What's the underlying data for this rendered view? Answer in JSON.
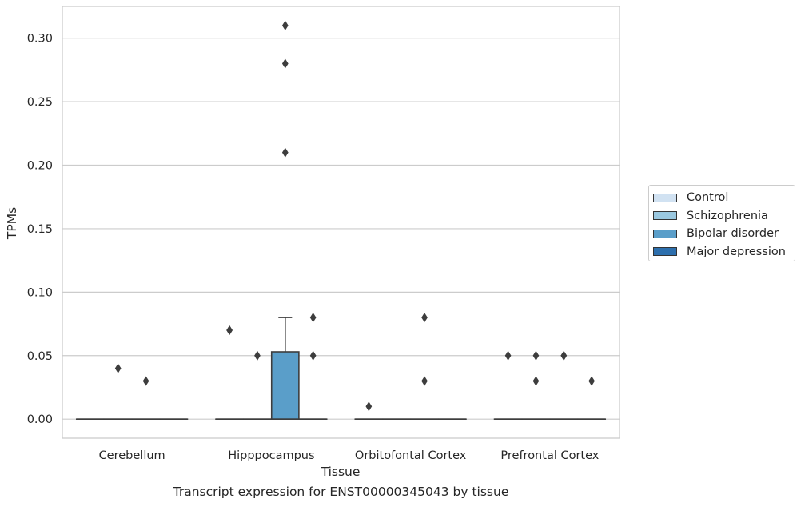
{
  "chart_data": {
    "type": "box",
    "xlabel": "Tissue",
    "ylabel": "TPMs",
    "ylim": [
      -0.015,
      0.325
    ],
    "yticks": [
      0.0,
      0.05,
      0.1,
      0.15,
      0.2,
      0.25,
      0.3
    ],
    "ytick_labels": [
      "0.00",
      "0.05",
      "0.10",
      "0.15",
      "0.20",
      "0.25",
      "0.30"
    ],
    "categories": [
      "Cerebellum",
      "Hipppocampus",
      "Orbitofontal Cortex",
      "Prefrontal Cortex"
    ],
    "grid": "horizontal",
    "legend_position": "right",
    "series": [
      {
        "name": "Control",
        "color": "#d1e2f2",
        "boxes": [
          {
            "q1": 0,
            "median": 0,
            "q3": 0,
            "whisker_low": 0,
            "whisker_high": 0,
            "outliers": []
          },
          {
            "q1": 0,
            "median": 0,
            "q3": 0,
            "whisker_low": 0,
            "whisker_high": 0,
            "outliers": [
              0.07,
              0.07
            ]
          },
          {
            "q1": 0,
            "median": 0,
            "q3": 0,
            "whisker_low": 0,
            "whisker_high": 0,
            "outliers": [
              0.01
            ]
          },
          {
            "q1": 0,
            "median": 0,
            "q3": 0,
            "whisker_low": 0,
            "whisker_high": 0,
            "outliers": [
              0.05
            ]
          }
        ]
      },
      {
        "name": "Schizophrenia",
        "color": "#9ac8e0",
        "boxes": [
          {
            "q1": 0,
            "median": 0,
            "q3": 0,
            "whisker_low": 0,
            "whisker_high": 0,
            "outliers": [
              0.04
            ]
          },
          {
            "q1": 0,
            "median": 0,
            "q3": 0,
            "whisker_low": 0,
            "whisker_high": 0,
            "outliers": [
              0.05
            ]
          },
          {
            "q1": 0,
            "median": 0,
            "q3": 0,
            "whisker_low": 0,
            "whisker_high": 0,
            "outliers": []
          },
          {
            "q1": 0,
            "median": 0,
            "q3": 0,
            "whisker_low": 0,
            "whisker_high": 0,
            "outliers": [
              0.05,
              0.03
            ]
          }
        ]
      },
      {
        "name": "Bipolar disorder",
        "color": "#5a9ec9",
        "boxes": [
          {
            "q1": 0,
            "median": 0,
            "q3": 0,
            "whisker_low": 0,
            "whisker_high": 0,
            "outliers": [
              0.03
            ]
          },
          {
            "q1": 0,
            "median": 0,
            "q3": 0.053,
            "whisker_low": 0,
            "whisker_high": 0.08,
            "outliers": [
              0.21,
              0.28,
              0.31
            ]
          },
          {
            "q1": 0,
            "median": 0,
            "q3": 0,
            "whisker_low": 0,
            "whisker_high": 0,
            "outliers": [
              0.08,
              0.03
            ]
          },
          {
            "q1": 0,
            "median": 0,
            "q3": 0,
            "whisker_low": 0,
            "whisker_high": 0,
            "outliers": [
              0.05,
              0.05
            ]
          }
        ]
      },
      {
        "name": "Major depression",
        "color": "#2d6fad",
        "boxes": [
          {
            "q1": 0,
            "median": 0,
            "q3": 0,
            "whisker_low": 0,
            "whisker_high": 0,
            "outliers": []
          },
          {
            "q1": 0,
            "median": 0,
            "q3": 0,
            "whisker_low": 0,
            "whisker_high": 0,
            "outliers": [
              0.08,
              0.05
            ]
          },
          {
            "q1": 0,
            "median": 0,
            "q3": 0,
            "whisker_low": 0,
            "whisker_high": 0,
            "outliers": []
          },
          {
            "q1": 0,
            "median": 0,
            "q3": 0,
            "whisker_low": 0,
            "whisker_high": 0,
            "outliers": [
              0.03
            ]
          }
        ]
      }
    ]
  },
  "caption": "Transcript expression for ENST00000345043 by tissue"
}
